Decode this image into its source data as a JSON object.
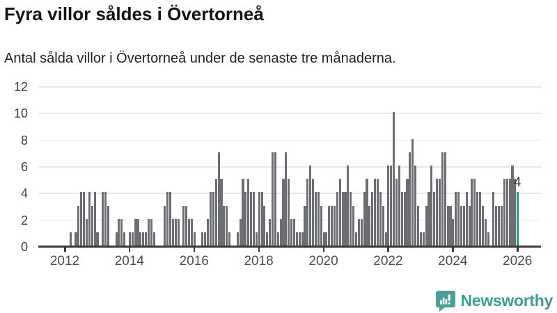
{
  "header": {
    "title": "Fyra villor såldes i Övertorneå",
    "subtitle": "Antal sålda villor i Övertorneå under de senaste tre månaderna."
  },
  "chart_data": {
    "type": "bar",
    "title": "Fyra villor såldes i Övertorneå",
    "subtitle": "Antal sålda villor i Övertorneå under de senaste tre månaderna.",
    "frequency": "monthly",
    "start": "2011-04",
    "xlabel": "",
    "ylabel": "",
    "ylim": [
      0,
      12
    ],
    "y_ticks": [
      0,
      2,
      4,
      6,
      8,
      10,
      12
    ],
    "x_ticks": [
      "2012",
      "2014",
      "2016",
      "2018",
      "2020",
      "2022",
      "2024",
      "2026"
    ],
    "grid": true,
    "legend": false,
    "bar_color": "#6c6e73",
    "highlight_color": "#18998f",
    "values": [
      0,
      0,
      0,
      0,
      0,
      0,
      0,
      0,
      0,
      0,
      0,
      1,
      0,
      1,
      3,
      4,
      4,
      2,
      4,
      3,
      4,
      1,
      0,
      4,
      4,
      3,
      0,
      0,
      1,
      2,
      2,
      1,
      0,
      1,
      1,
      2,
      2,
      1,
      1,
      1,
      2,
      2,
      1,
      0,
      0,
      0,
      3,
      4,
      4,
      2,
      2,
      2,
      0,
      3,
      3,
      2,
      2,
      1,
      0,
      0,
      1,
      1,
      2,
      4,
      4,
      5,
      7,
      5,
      3,
      3,
      1,
      0,
      0,
      1,
      2,
      5,
      4,
      5,
      4,
      4,
      1,
      4,
      4,
      3,
      1,
      2,
      7,
      7,
      1,
      2,
      5,
      7,
      5,
      2,
      2,
      1,
      1,
      1,
      3,
      5,
      6,
      5,
      4,
      4,
      3,
      1,
      1,
      3,
      3,
      3,
      4,
      5,
      4,
      4,
      6,
      4,
      3,
      1,
      2,
      2,
      4,
      5,
      3,
      4,
      5,
      5,
      4,
      3,
      1,
      6,
      6,
      10,
      5,
      6,
      4,
      4,
      5,
      7,
      8,
      6,
      3,
      1,
      1,
      3,
      4,
      6,
      4,
      5,
      5,
      7,
      7,
      3,
      3,
      2,
      4,
      4,
      3,
      3,
      4,
      3,
      5,
      5,
      4,
      4,
      3,
      2,
      1,
      0,
      4,
      3,
      3,
      3,
      5,
      5,
      5,
      6,
      5,
      4
    ],
    "highlight": {
      "index": 177,
      "value": 4,
      "label": "4"
    }
  },
  "footer": {
    "brand": "Newsworthy"
  }
}
